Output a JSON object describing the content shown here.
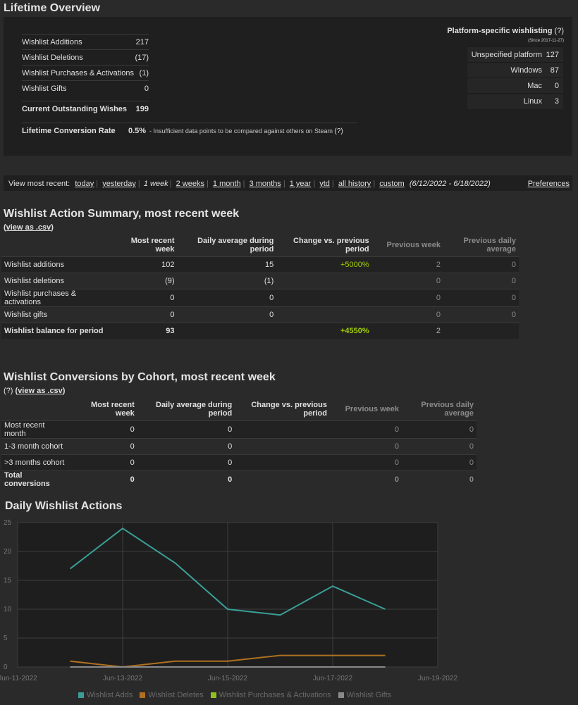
{
  "lifetime": {
    "title": "Lifetime Overview",
    "rows": [
      {
        "label": "Wishlist Additions",
        "value": "217"
      },
      {
        "label": "Wishlist Deletions",
        "value": "(17)"
      },
      {
        "label": "Wishlist Purchases & Activations",
        "value": "(1)"
      },
      {
        "label": "Wishlist Gifts",
        "value": "0"
      }
    ],
    "outstanding": {
      "label": "Current Outstanding Wishes",
      "value": "199"
    },
    "conversion": {
      "label": "Lifetime Conversion Rate",
      "value": "0.5%",
      "note": "- Insufficient data points to be compared against others on Steam",
      "help": "(?)"
    },
    "platform": {
      "title": "Platform-specific wishlisting",
      "help": "(?)",
      "since": "(Since 2017-11-27)",
      "rows": [
        {
          "label": "Unspecified platform",
          "value": "127"
        },
        {
          "label": "Windows",
          "value": "87"
        },
        {
          "label": "Mac",
          "value": "0"
        },
        {
          "label": "Linux",
          "value": "3"
        }
      ]
    }
  },
  "viewbar": {
    "label": "View most recent:",
    "links": [
      "today",
      "yesterday",
      "1 week",
      "2 weeks",
      "1 month",
      "3 months",
      "1 year",
      "ytd",
      "all history",
      "custom"
    ],
    "current": "1 week",
    "range": "(6/12/2022 - 6/18/2022)",
    "preferences": "Preferences"
  },
  "summary": {
    "title": "Wishlist Action Summary, most recent week",
    "csv": "view as .csv",
    "headers": [
      "Most recent week",
      "Daily average during period",
      "Change vs. previous period",
      "Previous week",
      "Previous daily average"
    ],
    "rows": [
      {
        "label": "Wishlist additions",
        "week": "102",
        "avg": "15",
        "change": "+5000%",
        "prev": "2",
        "prevavg": "0"
      },
      {
        "label": "Wishlist deletions",
        "week": "(9)",
        "avg": "(1)",
        "change": "",
        "prev": "0",
        "prevavg": "0"
      },
      {
        "label": "Wishlist purchases & activations",
        "week": "0",
        "avg": "0",
        "change": "",
        "prev": "0",
        "prevavg": "0"
      },
      {
        "label": "Wishlist gifts",
        "week": "0",
        "avg": "0",
        "change": "",
        "prev": "0",
        "prevavg": "0"
      }
    ],
    "balance": {
      "label": "Wishlist balance for period",
      "week": "93",
      "avg": "",
      "change": "+4550%",
      "prev": "2",
      "prevavg": ""
    }
  },
  "cohort": {
    "title": "Wishlist Conversions by Cohort, most recent week",
    "help": "(?)",
    "csv": "view as .csv",
    "headers": [
      "Most recent week",
      "Daily average during period",
      "Change vs. previous period",
      "Previous week",
      "Previous daily average"
    ],
    "rows": [
      {
        "label": "Most recent month",
        "week": "0",
        "avg": "0",
        "change": "",
        "prev": "0",
        "prevavg": "0"
      },
      {
        "label": "1-3 month cohort",
        "week": "0",
        "avg": "0",
        "change": "",
        "prev": "0",
        "prevavg": "0"
      },
      {
        "label": ">3 months cohort",
        "week": "0",
        "avg": "0",
        "change": "",
        "prev": "0",
        "prevavg": "0"
      }
    ],
    "total": {
      "label": "Total conversions",
      "week": "0",
      "avg": "0",
      "change": "",
      "prev": "0",
      "prevavg": "0"
    }
  },
  "chart_data": {
    "type": "line",
    "title": "Daily Wishlist Actions",
    "x": [
      "2022-06-12",
      "2022-06-13",
      "2022-06-14",
      "2022-06-15",
      "2022-06-16",
      "2022-06-17",
      "2022-06-18"
    ],
    "x_ticks": [
      "Jun-11-2022",
      "Jun-13-2022",
      "Jun-15-2022",
      "Jun-17-2022",
      "Jun-19-2022"
    ],
    "xlim": [
      "2022-06-11",
      "2022-06-19"
    ],
    "ylim": [
      0,
      25
    ],
    "y_ticks": [
      "0",
      "5",
      "10",
      "15",
      "20",
      "25"
    ],
    "grid": true,
    "legend_position": "bottom",
    "series": [
      {
        "name": "Wishlist Adds",
        "color": "#3a9e96",
        "values": [
          17,
          24,
          18,
          10,
          9,
          14,
          10
        ]
      },
      {
        "name": "Wishlist Deletes",
        "color": "#b07020",
        "values": [
          1,
          0,
          1,
          1,
          2,
          2,
          2
        ]
      },
      {
        "name": "Wishlist Purchases & Activations",
        "color": "#8fbf1f",
        "values": [
          0,
          0,
          0,
          0,
          0,
          0,
          0
        ]
      },
      {
        "name": "Wishlist Gifts",
        "color": "#8a8a8a",
        "values": [
          0,
          0,
          0,
          0,
          0,
          0,
          0
        ]
      }
    ]
  }
}
